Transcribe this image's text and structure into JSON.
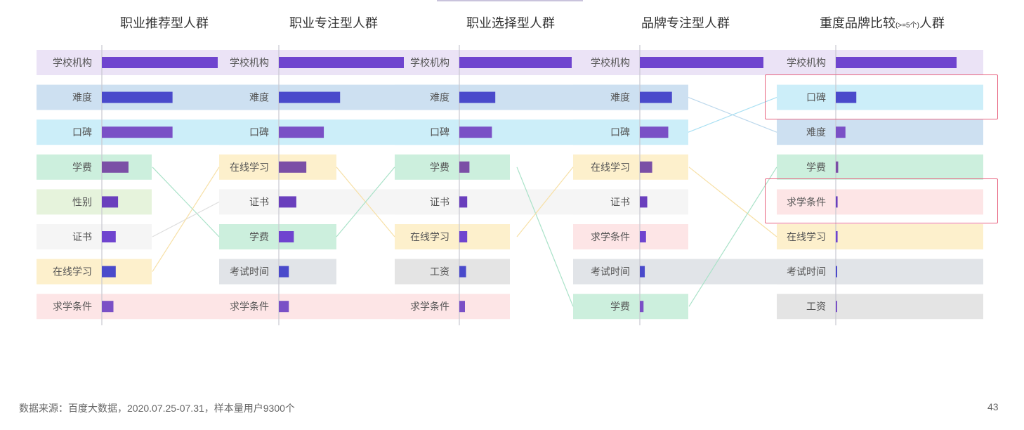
{
  "colors": {
    "categories": {
      "学校机构": "#ebe3f6",
      "难度": "#cde0f1",
      "口碑": "#cceef9",
      "学费": "#ccefdd",
      "性别": "#e6f3dc",
      "证书": "#f5f5f5",
      "在线学习": "#fdf0cc",
      "求学条件": "#fde5e6",
      "考试时间": "#e1e4e8",
      "工资": "#e4e4e4"
    },
    "bar_palette": [
      "#6f44cf",
      "#4a4acb",
      "#7a50c6",
      "#7b4fa6",
      "#6a3fbd"
    ],
    "connector": {
      "学费": "#a9e2c8",
      "难度": "#bcd8ec",
      "口碑": "#a9e0f3",
      "证书": "#dedede",
      "在线学习": "#f7e0a6"
    },
    "highlight": "#e8637f"
  },
  "chart_data": {
    "type": "bar",
    "columns": [
      {
        "title": "职业推荐型人群",
        "title_sub": "",
        "title_suffix": "",
        "items": [
          {
            "label": "学校机构",
            "value": 100
          },
          {
            "label": "难度",
            "value": 61
          },
          {
            "label": "口碑",
            "value": 61
          },
          {
            "label": "学费",
            "value": 23
          },
          {
            "label": "性别",
            "value": 14
          },
          {
            "label": "证书",
            "value": 12
          },
          {
            "label": "在线学习",
            "value": 12
          },
          {
            "label": "求学条件",
            "value": 10
          }
        ]
      },
      {
        "title": "职业专注型人群",
        "title_sub": "",
        "title_suffix": "",
        "items": [
          {
            "label": "学校机构",
            "value": 100
          },
          {
            "label": "难度",
            "value": 49
          },
          {
            "label": "口碑",
            "value": 36
          },
          {
            "label": "在线学习",
            "value": 22
          },
          {
            "label": "证书",
            "value": 14
          },
          {
            "label": "学费",
            "value": 12
          },
          {
            "label": "考试时间",
            "value": 8
          },
          {
            "label": "求学条件",
            "value": 8
          }
        ]
      },
      {
        "title": "职业选择型人群",
        "title_sub": "",
        "title_suffix": "",
        "items": [
          {
            "label": "学校机构",
            "value": 100
          },
          {
            "label": "难度",
            "value": 32
          },
          {
            "label": "口碑",
            "value": 29
          },
          {
            "label": "学费",
            "value": 9
          },
          {
            "label": "证书",
            "value": 7
          },
          {
            "label": "在线学习",
            "value": 7
          },
          {
            "label": "工资",
            "value": 6
          },
          {
            "label": "求学条件",
            "value": 5
          }
        ]
      },
      {
        "title": "品牌专注型人群",
        "title_sub": "",
        "title_suffix": "",
        "items": [
          {
            "label": "学校机构",
            "value": 100
          },
          {
            "label": "难度",
            "value": 26
          },
          {
            "label": "口碑",
            "value": 23
          },
          {
            "label": "在线学习",
            "value": 10
          },
          {
            "label": "证书",
            "value": 6
          },
          {
            "label": "求学条件",
            "value": 5
          },
          {
            "label": "考试时间",
            "value": 4
          },
          {
            "label": "学费",
            "value": 3
          }
        ]
      },
      {
        "title": "重度品牌比较",
        "title_sub": "(>=5个)",
        "title_suffix": "人群",
        "items": [
          {
            "label": "学校机构",
            "value": 100
          },
          {
            "label": "口碑",
            "value": 17
          },
          {
            "label": "难度",
            "value": 8
          },
          {
            "label": "学费",
            "value": 2
          },
          {
            "label": "求学条件",
            "value": 1.5
          },
          {
            "label": "在线学习",
            "value": 1.5
          },
          {
            "label": "考试时间",
            "value": 1
          },
          {
            "label": "工资",
            "value": 1
          }
        ]
      }
    ],
    "connectors": [
      {
        "from_col": 0,
        "to_col": 1,
        "label": "学费"
      },
      {
        "from_col": 0,
        "to_col": 1,
        "label": "证书"
      },
      {
        "from_col": 0,
        "to_col": 1,
        "label": "在线学习"
      },
      {
        "from_col": 1,
        "to_col": 2,
        "label": "在线学习"
      },
      {
        "from_col": 1,
        "to_col": 2,
        "label": "学费"
      },
      {
        "from_col": 2,
        "to_col": 3,
        "label": "学费"
      },
      {
        "from_col": 2,
        "to_col": 3,
        "label": "在线学习"
      },
      {
        "from_col": 3,
        "to_col": 4,
        "label": "难度"
      },
      {
        "from_col": 3,
        "to_col": 4,
        "label": "口碑"
      },
      {
        "from_col": 3,
        "to_col": 4,
        "label": "在线学习"
      },
      {
        "from_col": 3,
        "to_col": 4,
        "label": "学费"
      }
    ],
    "highlights": [
      {
        "col": 4,
        "label": "口碑"
      },
      {
        "col": 4,
        "label": "求学条件"
      }
    ]
  },
  "footer": {
    "source": "数据来源：百度大数据，2020.07.25-07.31，样本量用户9300个",
    "page_number": "43"
  }
}
